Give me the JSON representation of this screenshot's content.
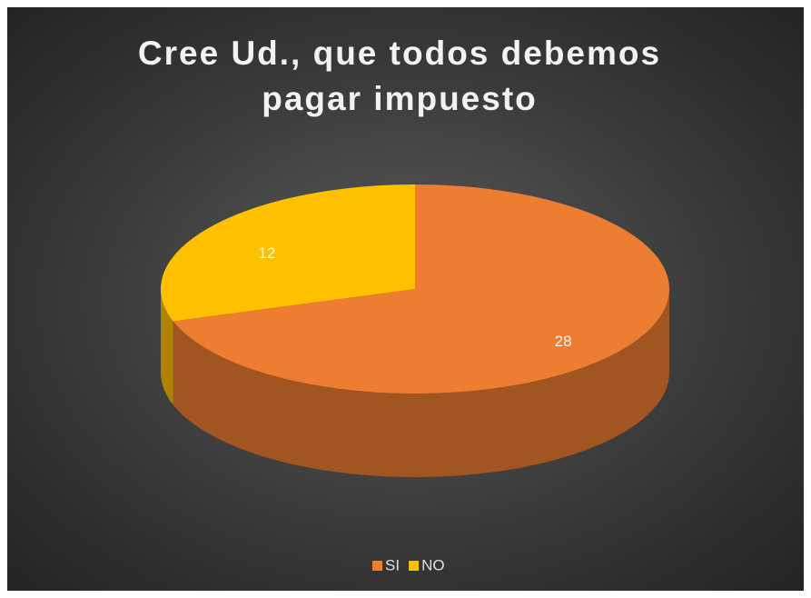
{
  "chart_data": {
    "type": "pie",
    "title": "Cree Ud., que todos debemos pagar impuesto",
    "categories": [
      "SI",
      "NO"
    ],
    "values": [
      28,
      12
    ],
    "colors": [
      "#ed7d31",
      "#ffc000"
    ],
    "legend": "bottom"
  }
}
